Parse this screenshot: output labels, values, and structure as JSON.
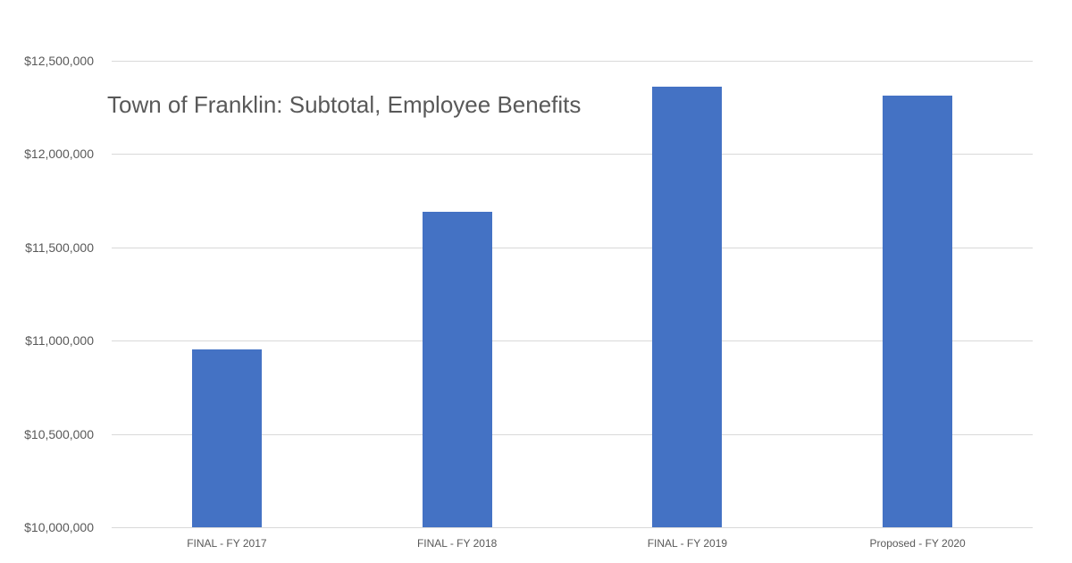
{
  "chart_data": {
    "type": "bar",
    "title": "Town of Franklin: Subtotal, Employee Benefits",
    "xlabel": "",
    "ylabel": "",
    "categories": [
      "FINAL - FY 2017",
      "FINAL - FY 2018",
      "FINAL - FY 2019",
      "Proposed - FY 2020"
    ],
    "values": [
      10952000,
      11691000,
      12361000,
      12313000
    ],
    "ylim": [
      10000000,
      12500000
    ],
    "yticks": [
      10000000,
      10500000,
      11000000,
      11500000,
      12000000,
      12500000
    ],
    "ytick_labels": [
      "$10,000,000",
      "$10,500,000",
      "$11,000,000",
      "$11,500,000",
      "$12,000,000",
      "$12,500,000"
    ],
    "grid": true,
    "legend": null,
    "bar_color": "#4472c4"
  }
}
